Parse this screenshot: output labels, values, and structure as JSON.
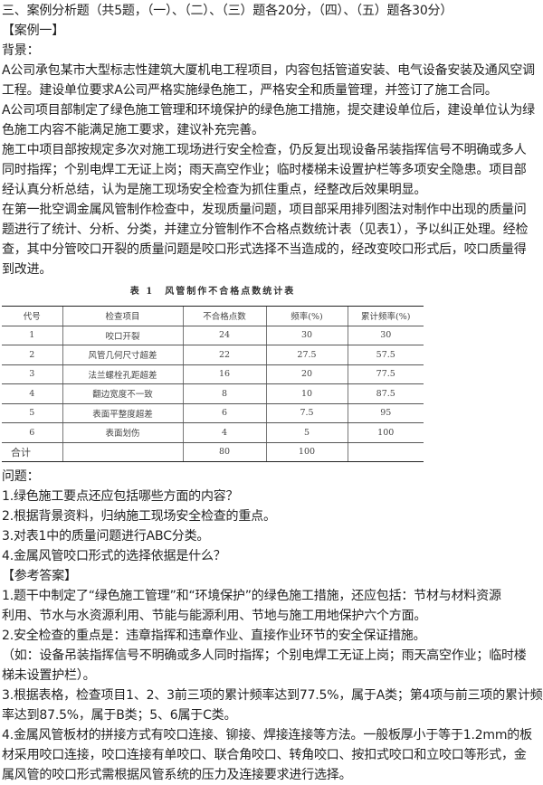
{
  "heading": "三、案例分析题（共5题，（一）、（二）、（三）题各20分，（四）、（五）题各30分）",
  "case_label": "【案例一】",
  "background_label": "背景：",
  "background_lines": [
    "A公司承包某市大型标志性建筑大厦机电工程项目，内容包括管道安装、电气设备安装及通风空调",
    "工程。建设单位要求A公司严格实施绿色施工，严格安全和质量管理，并签订了施工合同。",
    "A公司项目部制定了绿色施工管理和环境保护的绿色施工措施，提交建设单位后，建设单位认为绿",
    "色施工内容不能满足施工要求，建议补充完善。",
    "施工中项目部按规定多次对施工现场进行安全检查，仍反复出现设备吊装指挥信号不明确或多人",
    "同时指挥；个别电焊工无证上岗；雨天高空作业；临时楼梯未设置护栏等多项安全隐患。项目部",
    "经认真分析总结，认为是施工现场安全检查为抓住重点，经整改后效果明显。",
    "在第一批空调金属风管制作检查中，发现质量问题，项目部采用排列图法对制作中出现的质量问",
    "题进行了统计、分析、分类，并建立分管制作不合格点数统计表（见表1），予以纠正处理。经检",
    "查，其中分管咬口开裂的质量问题是咬口形式选择不当造成的，经改变咬口形式后，咬口质量得",
    "到改进。"
  ],
  "table": {
    "caption": "表 1　风管制作不合格点数统计表",
    "headers": [
      "代号",
      "检查项目",
      "不合格点数",
      "频率(%)",
      "累计频率(%)"
    ],
    "rows": [
      [
        "1",
        "咬口开裂",
        "24",
        "30",
        "30"
      ],
      [
        "2",
        "风管几何尺寸超差",
        "22",
        "27.5",
        "57.5"
      ],
      [
        "3",
        "法兰螺栓孔距超差",
        "16",
        "20",
        "77.5"
      ],
      [
        "4",
        "翻边宽度不一致",
        "8",
        "10",
        "87.5"
      ],
      [
        "5",
        "表面平整度超差",
        "6",
        "7.5",
        "95"
      ],
      [
        "6",
        "表面划伤",
        "4",
        "5",
        "100"
      ],
      [
        "合计",
        "",
        "80",
        "100",
        ""
      ]
    ]
  },
  "questions_label": "问题：",
  "questions": [
    "1.绿色施工要点还应包括哪些方面的内容？",
    "2.根据背景资料，归纳施工现场安全检查的重点。",
    "3.对表1中的质量问题进行ABC分类。",
    "4.金属风管咬口形式的选择依据是什么？"
  ],
  "answer_label": "【参考答案】",
  "answer_lines": [
    "1.题干中制定了“绿色施工管理”和“环境保护”的绿色施工措施，还应包括：节材与材料资源",
    "利用、节水与水资源利用、节能与能源利用、节地与施工用地保护六个方面。",
    "2.安全检查的重点是：违章指挥和违章作业、直接作业环节的安全保证措施。",
    "（如：设备吊装指挥信号不明确或多人同时指挥；个别电焊工无证上岗；雨天高空作业；临时楼",
    "梯未设置护栏）。",
    "3.根据表格，检查项目1、2、3前三项的累计频率达到77.5%，属于A类；第4项与前三项的累计频",
    "率达到87.5%，属于B类；5、6属于C类。",
    "4.金属风管板材的拼接方式有咬口连接、铆接、焊接连接等方法。一般板厚小于等于1.2mm的板",
    "材采用咬口连接，咬口连接有单咬口、联合角咬口、转角咬口、按扣式咬口和立咬口等形式，金",
    "属风管的咬口形式需根据风管系统的压力及连接要求进行选择。"
  ]
}
